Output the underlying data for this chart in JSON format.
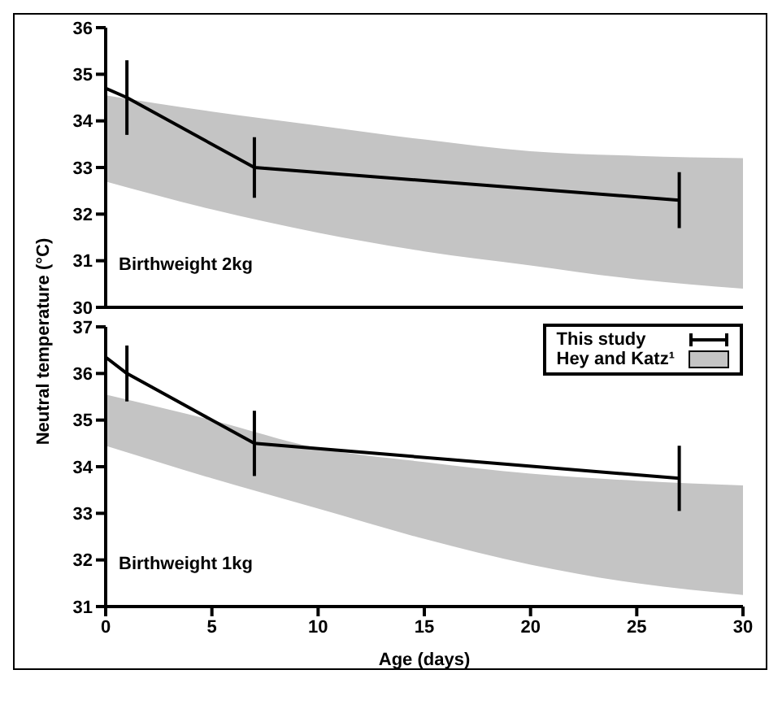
{
  "chart_data": [
    {
      "type": "line",
      "ylabel": "Neutral temperature (°C)",
      "annotations": [
        "Birthweight 2kg"
      ],
      "xlim": [
        0,
        30
      ],
      "xticks": [
        0,
        5,
        10,
        15,
        20,
        25,
        30
      ],
      "ylim": [
        30,
        36
      ],
      "yticks": [
        30,
        31,
        32,
        33,
        34,
        35,
        36
      ],
      "tick_labels": "y",
      "grid": false,
      "marker": "none",
      "legend": false,
      "series": [
        {
          "type": "area",
          "color": "#c4c4c4",
          "x": [
            0,
            5,
            10,
            15,
            20,
            25,
            30
          ],
          "values": [
            null,
            null,
            null,
            null,
            null,
            null,
            null
          ],
          "lower": [
            32.7,
            32.1,
            31.6,
            31.2,
            30.9,
            30.6,
            30.4
          ],
          "upper": [
            34.55,
            34.2,
            33.9,
            33.6,
            33.35,
            33.25,
            33.2
          ]
        },
        {
          "type": "line",
          "color": "#000000",
          "x": [
            0,
            1,
            7,
            27
          ],
          "values": [
            34.7,
            34.5,
            33.0,
            32.3
          ],
          "errors": [
            null,
            0.8,
            0.65,
            0.6
          ]
        }
      ]
    },
    {
      "type": "line",
      "xlabel": "Age (days)",
      "annotations": [
        "Birthweight 1kg"
      ],
      "xlim": [
        0,
        30
      ],
      "xticks": [
        0,
        5,
        10,
        15,
        20,
        25,
        30
      ],
      "ylim": [
        31,
        37
      ],
      "yticks": [
        31,
        32,
        33,
        34,
        35,
        36,
        37
      ],
      "grid": false,
      "marker": "none",
      "legend": "top right",
      "series": [
        {
          "name": "Hey and Katz¹",
          "type": "area",
          "color": "#c4c4c4",
          "x": [
            0,
            5,
            10,
            15,
            20,
            25,
            30
          ],
          "values": [
            null,
            null,
            null,
            null,
            null,
            null,
            null
          ],
          "lower": [
            34.45,
            33.75,
            33.1,
            32.45,
            31.9,
            31.5,
            31.25
          ],
          "upper": [
            35.55,
            35.0,
            34.4,
            34.1,
            33.85,
            33.7,
            33.6
          ]
        },
        {
          "name": "This study",
          "type": "line",
          "color": "#000000",
          "x": [
            0,
            1,
            7,
            27
          ],
          "values": [
            36.35,
            36.0,
            34.5,
            33.75
          ],
          "errors": [
            null,
            0.6,
            0.7,
            0.7
          ]
        }
      ]
    }
  ]
}
